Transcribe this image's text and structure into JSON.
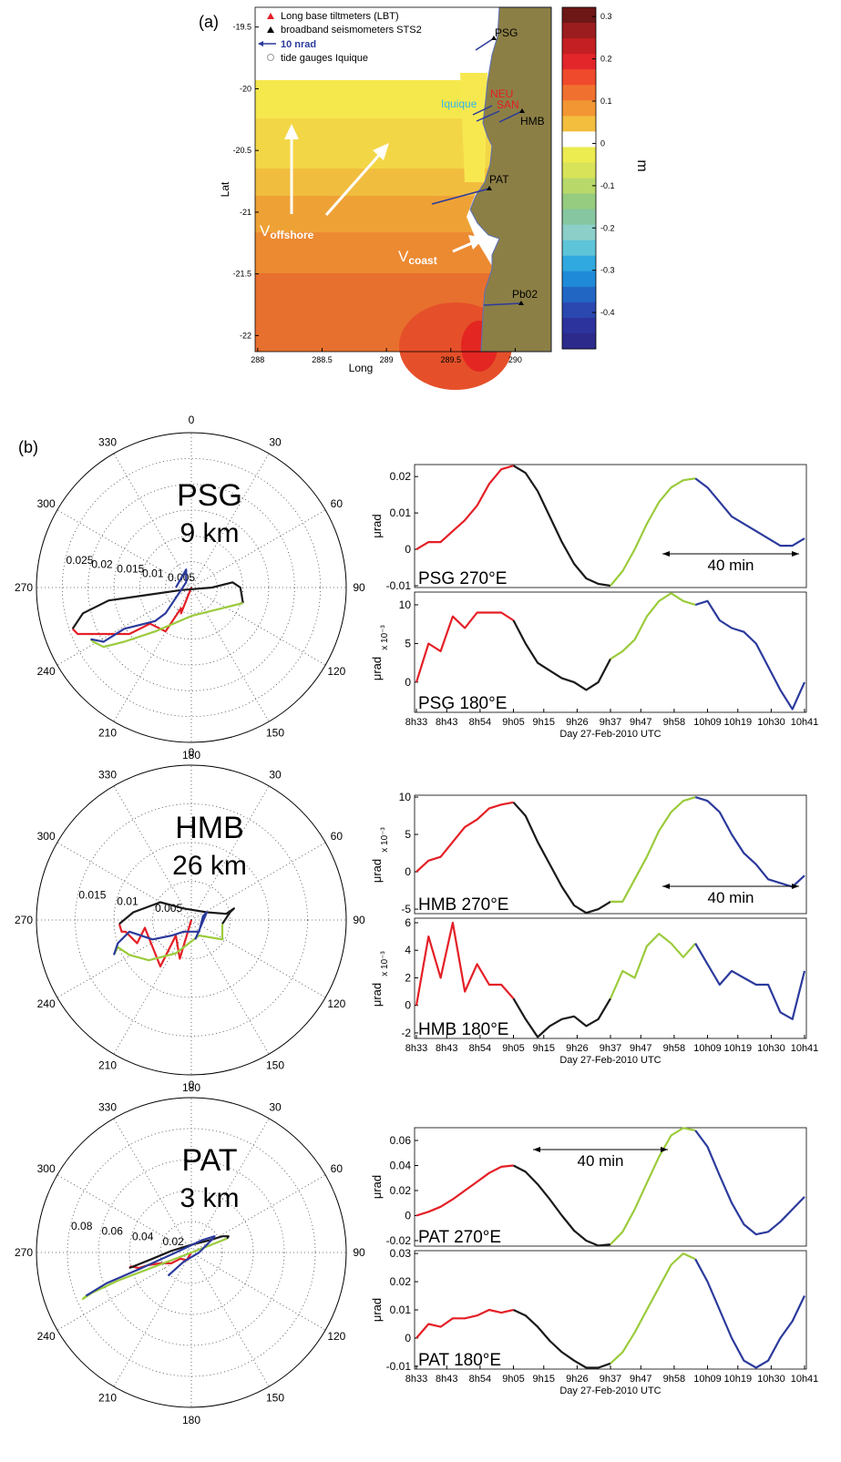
{
  "map": {
    "label": "(a)",
    "xlabel": "Long",
    "ylabel": "Lat",
    "xlim": [
      287.98,
      290.28
    ],
    "ylim": [
      -22.13,
      -19.34
    ],
    "xticks": [
      288,
      288.5,
      289,
      289.5,
      290
    ],
    "yticks": [
      -19.5,
      -20,
      -20.5,
      -21,
      -21.5,
      -22
    ],
    "legend": [
      "Long base tiltmeters (LBT)",
      "broadband seismometers STS2",
      "10 nrad",
      "tide gauges Iquique"
    ],
    "stations": [
      "PSG",
      "NEU",
      "SAN",
      "Iquique",
      "HMB",
      "PAT",
      "Pb02"
    ],
    "annotations": [
      {
        "text": "V",
        "sub": "offshore"
      },
      {
        "text": "V",
        "sub": "coast"
      }
    ],
    "colorbar": {
      "label": "m",
      "lim": [
        -0.486,
        0.322
      ],
      "ticks": [
        0.3,
        0.2,
        0.1,
        0,
        -0.1,
        -0.2,
        -0.3,
        -0.4
      ]
    }
  },
  "panel_b_label": "(b)",
  "chart_data": [
    {
      "type": "polar",
      "title": "PSG",
      "subtitle": "9 km",
      "angles": [
        0,
        30,
        60,
        90,
        120,
        150,
        180,
        210,
        240,
        270,
        300,
        330
      ],
      "rlim": [
        0,
        0.03
      ],
      "rticks": [
        0.005,
        0.01,
        0.015,
        0.02,
        0.025
      ]
    },
    {
      "type": "line",
      "label": "PSG 270°E",
      "ylabel": "μrad",
      "annotation": "40 min",
      "xlim": [
        512.4,
        641.6
      ],
      "ylim": [
        -0.0105,
        0.0233
      ],
      "yticks": [
        -0.01,
        0,
        0.01,
        0.02
      ],
      "series": [
        {
          "color": "#e41f26",
          "x": [
            513,
            517,
            521,
            525,
            529,
            533,
            537,
            541,
            545
          ],
          "values": [
            0,
            0.002,
            0.002,
            0.005,
            0.008,
            0.012,
            0.018,
            0.022,
            0.023
          ]
        },
        {
          "color": "#1a1a1a",
          "x": [
            545,
            549,
            553,
            557,
            561,
            565,
            569,
            573,
            577
          ],
          "values": [
            0.023,
            0.021,
            0.016,
            0.009,
            0.002,
            -0.004,
            -0.008,
            -0.0095,
            -0.01
          ]
        },
        {
          "color": "#9bcb3c",
          "x": [
            577,
            581,
            585,
            589,
            593,
            597,
            601,
            605
          ],
          "values": [
            -0.01,
            -0.006,
            0,
            0.007,
            0.013,
            0.017,
            0.019,
            0.0195
          ]
        },
        {
          "color": "#2b3a9c",
          "x": [
            605,
            609,
            613,
            617,
            621,
            625,
            629,
            633,
            637,
            641
          ],
          "values": [
            0.0195,
            0.017,
            0.013,
            0.009,
            0.007,
            0.005,
            0.003,
            0.001,
            0.001,
            0.003
          ]
        }
      ]
    },
    {
      "type": "line",
      "label": "PSG 180°E",
      "ylabel": "μrad",
      "y_multiplier": {
        "value": 0.001,
        "label": "x 10⁻³"
      },
      "xlabel": "Day 27-Feb-2010 UTC",
      "xlim": [
        512.4,
        641.6
      ],
      "ylim": [
        -3.9,
        11.65
      ],
      "yticks": [
        0,
        5,
        10
      ],
      "xticks": [
        {
          "value": 513,
          "label": "8h33"
        },
        {
          "value": 523,
          "label": "8h43"
        },
        {
          "value": 534,
          "label": "8h54"
        },
        {
          "value": 545,
          "label": "9h05"
        },
        {
          "value": 555,
          "label": "9h15"
        },
        {
          "value": 566,
          "label": "9h26"
        },
        {
          "value": 577,
          "label": "9h37"
        },
        {
          "value": 587,
          "label": "9h47"
        },
        {
          "value": 598,
          "label": "9h58"
        },
        {
          "value": 609,
          "label": "10h09"
        },
        {
          "value": 619,
          "label": "10h19"
        },
        {
          "value": 630,
          "label": "10h30"
        },
        {
          "value": 641,
          "label": "10h41"
        }
      ],
      "series": [
        {
          "color": "#e41f26",
          "x": [
            513,
            517,
            521,
            525,
            529,
            533,
            537,
            541,
            545
          ],
          "values": [
            0,
            5,
            4,
            8.5,
            7,
            9,
            9,
            9,
            8
          ]
        },
        {
          "color": "#1a1a1a",
          "x": [
            545,
            549,
            553,
            557,
            561,
            565,
            569,
            573,
            577
          ],
          "values": [
            8,
            5,
            2.5,
            1.5,
            0.5,
            0,
            -1,
            0,
            3
          ]
        },
        {
          "color": "#9bcb3c",
          "x": [
            577,
            581,
            585,
            589,
            593,
            597,
            601,
            605
          ],
          "values": [
            3,
            4,
            5.5,
            8.5,
            10.5,
            11.5,
            10.5,
            10
          ]
        },
        {
          "color": "#2b3a9c",
          "x": [
            605,
            609,
            613,
            617,
            621,
            625,
            629,
            633,
            637,
            641
          ],
          "values": [
            10,
            10.5,
            8,
            7,
            6.5,
            5,
            2,
            -1,
            -3.5,
            0
          ]
        }
      ]
    },
    {
      "type": "polar",
      "title": "HMB",
      "subtitle": "26 km",
      "angles": [
        0,
        30,
        60,
        90,
        120,
        150,
        180,
        210,
        240,
        270,
        300,
        330
      ],
      "rlim": [
        0,
        0.02
      ],
      "rticks": [
        0.005,
        0.01,
        0.015
      ]
    },
    {
      "type": "line",
      "label": "HMB 270°E",
      "ylabel": "μrad",
      "y_multiplier": {
        "value": 0.001,
        "label": "x 10⁻³"
      },
      "annotation": "40 min",
      "xlim": [
        512.4,
        641.6
      ],
      "ylim": [
        -5.6,
        10.25
      ],
      "yticks": [
        -5,
        0,
        5,
        10
      ],
      "series": [
        {
          "color": "#e41f26",
          "x": [
            513,
            517,
            521,
            525,
            529,
            533,
            537,
            541,
            545
          ],
          "values": [
            0,
            1.5,
            2,
            4,
            6,
            7,
            8.5,
            9,
            9.3
          ]
        },
        {
          "color": "#1a1a1a",
          "x": [
            545,
            549,
            553,
            557,
            561,
            565,
            569,
            573,
            577
          ],
          "values": [
            9.3,
            7.5,
            4,
            1,
            -2,
            -4.5,
            -5.5,
            -5,
            -4
          ]
        },
        {
          "color": "#9bcb3c",
          "x": [
            577,
            581,
            585,
            589,
            593,
            597,
            601,
            605
          ],
          "values": [
            -4,
            -4,
            -1,
            2,
            5.5,
            8,
            9.5,
            10
          ]
        },
        {
          "color": "#2b3a9c",
          "x": [
            605,
            609,
            613,
            617,
            621,
            625,
            629,
            633,
            637,
            641
          ],
          "values": [
            10,
            9.5,
            8,
            5,
            2.5,
            1,
            -1,
            -1.5,
            -2,
            -0.5
          ]
        }
      ]
    },
    {
      "type": "line",
      "label": "HMB 180°E",
      "ylabel": "μrad",
      "y_multiplier": {
        "value": 0.001,
        "label": "x 10⁻³"
      },
      "xlabel": "Day 27-Feb-2010 UTC",
      "xlim": [
        512.4,
        641.6
      ],
      "ylim": [
        -2.4,
        6.33
      ],
      "yticks": [
        -2,
        0,
        2,
        4,
        6
      ],
      "xticks": [
        {
          "value": 513,
          "label": "8h33"
        },
        {
          "value": 523,
          "label": "8h43"
        },
        {
          "value": 534,
          "label": "8h54"
        },
        {
          "value": 545,
          "label": "9h05"
        },
        {
          "value": 555,
          "label": "9h15"
        },
        {
          "value": 566,
          "label": "9h26"
        },
        {
          "value": 577,
          "label": "9h37"
        },
        {
          "value": 587,
          "label": "9h47"
        },
        {
          "value": 598,
          "label": "9h58"
        },
        {
          "value": 609,
          "label": "10h09"
        },
        {
          "value": 619,
          "label": "10h19"
        },
        {
          "value": 630,
          "label": "10h30"
        },
        {
          "value": 641,
          "label": "10h41"
        }
      ],
      "series": [
        {
          "color": "#e41f26",
          "x": [
            513,
            517,
            521,
            525,
            529,
            533,
            537,
            541,
            545
          ],
          "values": [
            0,
            5,
            2,
            6,
            1,
            3,
            1.5,
            1.5,
            0.5
          ]
        },
        {
          "color": "#1a1a1a",
          "x": [
            545,
            549,
            553,
            557,
            561,
            565,
            569,
            573,
            577
          ],
          "values": [
            0.5,
            -1,
            -2.3,
            -1.5,
            -1,
            -0.8,
            -1.5,
            -1,
            0.5
          ]
        },
        {
          "color": "#9bcb3c",
          "x": [
            577,
            581,
            585,
            589,
            593,
            597,
            601,
            605
          ],
          "values": [
            0.5,
            2.5,
            2,
            4.3,
            5.2,
            4.5,
            3.5,
            4.5
          ]
        },
        {
          "color": "#2b3a9c",
          "x": [
            605,
            609,
            613,
            617,
            621,
            625,
            629,
            633,
            637,
            641
          ],
          "values": [
            4.5,
            3,
            1.5,
            2.5,
            2,
            1.5,
            1.5,
            -0.5,
            -1,
            2.5
          ]
        }
      ]
    },
    {
      "type": "polar",
      "title": "PAT",
      "subtitle": "3 km",
      "angles": [
        0,
        30,
        60,
        90,
        120,
        150,
        180,
        210,
        240,
        270,
        300,
        330
      ],
      "rlim": [
        0,
        0.1
      ],
      "rticks": [
        0.02,
        0.04,
        0.06,
        0.08
      ]
    },
    {
      "type": "line",
      "label": "PAT 270°E",
      "ylabel": "μrad",
      "annotation": "40 min",
      "xlim": [
        512.4,
        641.6
      ],
      "ylim": [
        -0.0244,
        0.0702
      ],
      "yticks": [
        -0.02,
        0,
        0.02,
        0.04,
        0.06
      ],
      "series": [
        {
          "color": "#e41f26",
          "x": [
            513,
            517,
            521,
            525,
            529,
            533,
            537,
            541,
            545
          ],
          "values": [
            0,
            0.003,
            0.007,
            0.013,
            0.02,
            0.027,
            0.034,
            0.039,
            0.04
          ]
        },
        {
          "color": "#1a1a1a",
          "x": [
            545,
            549,
            553,
            557,
            561,
            565,
            569,
            573,
            577
          ],
          "values": [
            0.04,
            0.035,
            0.025,
            0.013,
            0,
            -0.012,
            -0.02,
            -0.024,
            -0.023
          ]
        },
        {
          "color": "#9bcb3c",
          "x": [
            577,
            581,
            585,
            589,
            593,
            597,
            601,
            605
          ],
          "values": [
            -0.023,
            -0.013,
            0.005,
            0.026,
            0.047,
            0.064,
            0.07,
            0.068
          ]
        },
        {
          "color": "#2b3a9c",
          "x": [
            605,
            609,
            613,
            617,
            621,
            625,
            629,
            633,
            637,
            641
          ],
          "values": [
            0.068,
            0.055,
            0.032,
            0.01,
            -0.007,
            -0.015,
            -0.013,
            -0.005,
            0.005,
            0.015
          ]
        }
      ]
    },
    {
      "type": "line",
      "label": "PAT 180°E",
      "ylabel": "μrad",
      "xlabel": "Day 27-Feb-2010 UTC",
      "xlim": [
        512.4,
        641.6
      ],
      "ylim": [
        -0.011,
        0.031
      ],
      "yticks": [
        -0.01,
        0,
        0.01,
        0.02,
        0.03
      ],
      "xticks": [
        {
          "value": 513,
          "label": "8h33"
        },
        {
          "value": 523,
          "label": "8h43"
        },
        {
          "value": 534,
          "label": "8h54"
        },
        {
          "value": 545,
          "label": "9h05"
        },
        {
          "value": 555,
          "label": "9h15"
        },
        {
          "value": 566,
          "label": "9h26"
        },
        {
          "value": 577,
          "label": "9h37"
        },
        {
          "value": 587,
          "label": "9h47"
        },
        {
          "value": 598,
          "label": "9h58"
        },
        {
          "value": 609,
          "label": "10h09"
        },
        {
          "value": 619,
          "label": "10h19"
        },
        {
          "value": 630,
          "label": "10h30"
        },
        {
          "value": 641,
          "label": "10h41"
        }
      ],
      "series": [
        {
          "color": "#e41f26",
          "x": [
            513,
            517,
            521,
            525,
            529,
            533,
            537,
            541,
            545
          ],
          "values": [
            0,
            0.005,
            0.004,
            0.007,
            0.007,
            0.008,
            0.01,
            0.009,
            0.01
          ]
        },
        {
          "color": "#1a1a1a",
          "x": [
            545,
            549,
            553,
            557,
            561,
            565,
            569,
            573,
            577
          ],
          "values": [
            0.01,
            0.008,
            0.004,
            -0.001,
            -0.005,
            -0.008,
            -0.0105,
            -0.0105,
            -0.009
          ]
        },
        {
          "color": "#9bcb3c",
          "x": [
            577,
            581,
            585,
            589,
            593,
            597,
            601,
            605
          ],
          "values": [
            -0.009,
            -0.005,
            0.002,
            0.01,
            0.018,
            0.026,
            0.03,
            0.028
          ]
        },
        {
          "color": "#2b3a9c",
          "x": [
            605,
            609,
            613,
            617,
            621,
            625,
            629,
            633,
            637,
            641
          ],
          "values": [
            0.028,
            0.02,
            0.01,
            0,
            -0.008,
            -0.0105,
            -0.008,
            0,
            0.006,
            0.015
          ]
        }
      ]
    }
  ]
}
